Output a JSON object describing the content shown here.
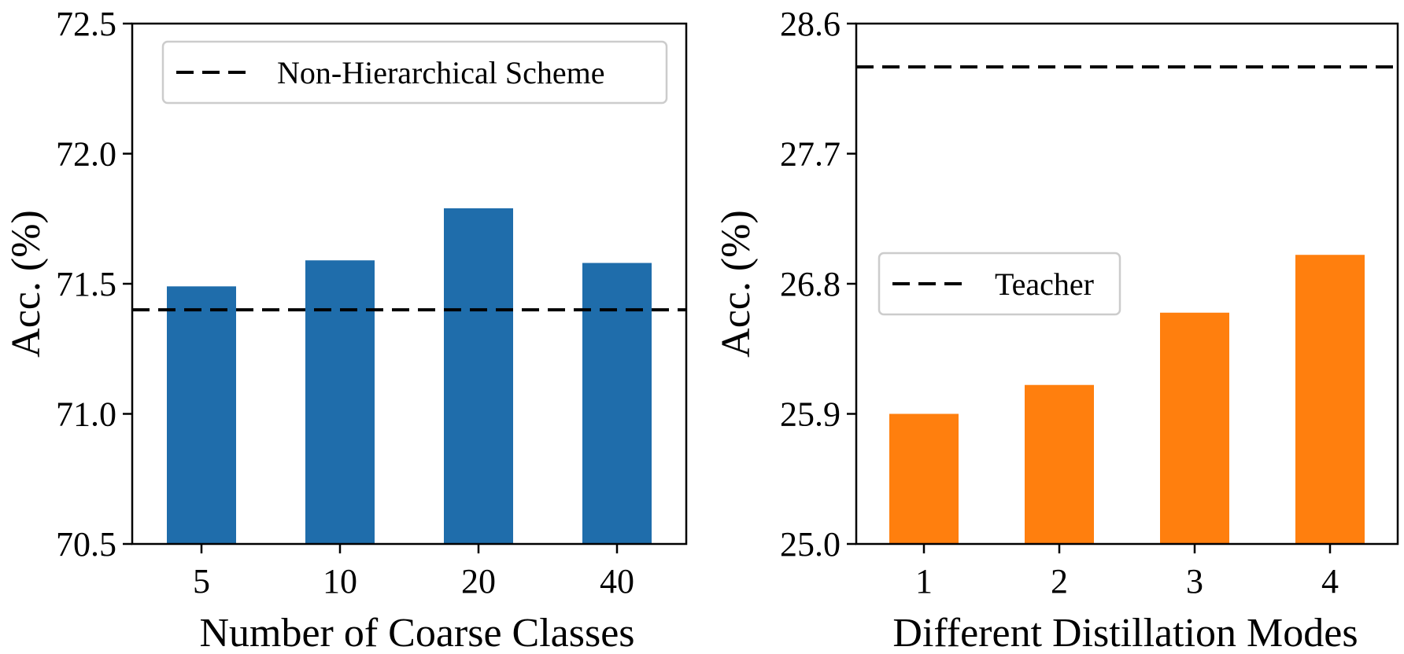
{
  "colors": {
    "left_bar": "#1f6dab",
    "right_bar": "#ff7f0e",
    "axis": "#000000",
    "legend_border": "#cccccc"
  },
  "chart_data": [
    {
      "type": "bar",
      "categories": [
        "5",
        "10",
        "20",
        "40"
      ],
      "values": [
        71.49,
        71.59,
        71.79,
        71.58
      ],
      "reference_line": {
        "value": 71.4,
        "style": "dashed",
        "label": "Non-Hierarchical Scheme"
      },
      "xlabel": "Number of Coarse Classes",
      "ylabel": "Acc. (%)",
      "ylim": [
        70.5,
        72.5
      ],
      "yticks": [
        "70.5",
        "71.0",
        "71.5",
        "72.0",
        "72.5"
      ],
      "legend_position": "top-left",
      "grid": false
    },
    {
      "type": "bar",
      "categories": [
        "1",
        "2",
        "3",
        "4"
      ],
      "values": [
        25.9,
        26.1,
        26.6,
        27.0
      ],
      "reference_line": {
        "value": 28.3,
        "style": "dashed",
        "label": "Teacher"
      },
      "xlabel": "Different Distillation Modes",
      "ylabel": "Acc. (%)",
      "ylim": [
        25.0,
        28.6
      ],
      "yticks": [
        "25.0",
        "25.9",
        "26.8",
        "27.7",
        "28.6"
      ],
      "legend_position": "center-left",
      "grid": false
    }
  ]
}
